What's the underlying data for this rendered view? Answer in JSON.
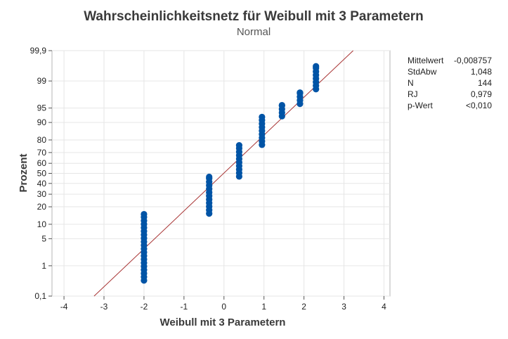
{
  "chart_data": {
    "type": "scatter",
    "title": "Wahrscheinlichkeitsnetz für Weibull mit 3 Parametern",
    "subtitle": "Normal",
    "xlabel": "Weibull mit 3 Parametern",
    "ylabel": "Prozent",
    "xlim": [
      -4.3,
      4.15
    ],
    "ylim_percent": [
      0.1,
      99.9
    ],
    "y_scale": "normal-probability",
    "grid": true,
    "x_ticks": [
      -4,
      -3,
      -2,
      -1,
      0,
      1,
      2,
      3,
      4
    ],
    "y_ticks": [
      {
        "value": 0.1,
        "label": "0,1"
      },
      {
        "value": 1,
        "label": "1"
      },
      {
        "value": 5,
        "label": "5"
      },
      {
        "value": 10,
        "label": "10"
      },
      {
        "value": 20,
        "label": "20"
      },
      {
        "value": 30,
        "label": "30"
      },
      {
        "value": 40,
        "label": "40"
      },
      {
        "value": 50,
        "label": "50"
      },
      {
        "value": 60,
        "label": "60"
      },
      {
        "value": 70,
        "label": "70"
      },
      {
        "value": 80,
        "label": "80"
      },
      {
        "value": 90,
        "label": "90"
      },
      {
        "value": 95,
        "label": "95"
      },
      {
        "value": 99,
        "label": "99"
      },
      {
        "value": 99.9,
        "label": "99,9"
      }
    ],
    "fit_line": {
      "mean": -0.008757,
      "sd": 1.048
    },
    "point_groups": [
      {
        "x": -2.0,
        "y_from": 0.35,
        "y_to": 15.2
      },
      {
        "x": -0.37,
        "y_from": 15.6,
        "y_to": 46.5
      },
      {
        "x": 0.38,
        "y_from": 46.9,
        "y_to": 76.0
      },
      {
        "x": 0.95,
        "y_from": 76.4,
        "y_to": 92.2
      },
      {
        "x": 1.45,
        "y_from": 92.5,
        "y_to": 95.7
      },
      {
        "x": 1.9,
        "y_from": 96.0,
        "y_to": 97.9
      },
      {
        "x": 2.3,
        "y_from": 98.3,
        "y_to": 99.65
      }
    ],
    "point_color": "#0054a6",
    "line_color": "#a83434",
    "stats": [
      {
        "label": "Mittelwert",
        "value": "-0,008757"
      },
      {
        "label": "StdAbw",
        "value": "1,048"
      },
      {
        "label": "N",
        "value": "144"
      },
      {
        "label": "RJ",
        "value": "0,979"
      },
      {
        "label": "p-Wert",
        "value": "<0,010"
      }
    ]
  }
}
